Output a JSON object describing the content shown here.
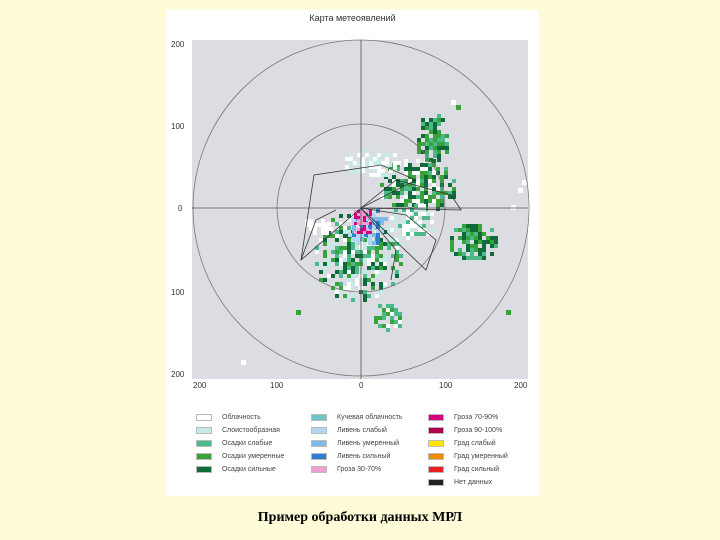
{
  "map": {
    "title": "Карта метеоявлений",
    "y_ticks": [
      "200",
      "100",
      "0",
      "100",
      "200"
    ],
    "x_ticks": [
      "200",
      "100",
      "0",
      "100",
      "200"
    ],
    "background_color": "#dcdde3",
    "ring_color": "#777777"
  },
  "legend": {
    "items": [
      {
        "label": "Облачность",
        "color": "#ffffff",
        "column": 1
      },
      {
        "label": "Слоистообразная",
        "color": "#c5ebe6",
        "column": 1
      },
      {
        "label": "Осадки слабые",
        "color": "#4cb98a",
        "column": 1
      },
      {
        "label": "Осадки умеренные",
        "color": "#3aa23a",
        "column": 1
      },
      {
        "label": "Осадки сильные",
        "color": "#0f6b3a",
        "column": 1
      },
      {
        "label": "Кучевая облачность",
        "color": "#6cc7c9",
        "column": 2
      },
      {
        "label": "Ливень слабый",
        "color": "#b2d7ee",
        "column": 2
      },
      {
        "label": "Ливень умеренный",
        "color": "#7fb9e8",
        "column": 2
      },
      {
        "label": "Ливень сильный",
        "color": "#2e7fd0",
        "column": 2
      },
      {
        "label": "Гроза 30-70%",
        "color": "#f0a0d0",
        "column": 2
      },
      {
        "label": "Гроза 70-90%",
        "color": "#d6007e",
        "column": 3
      },
      {
        "label": "Гроза 90-100%",
        "color": "#b0004e",
        "column": 3
      },
      {
        "label": "Град слабый",
        "color": "#ffe600",
        "column": 3
      },
      {
        "label": "Град умеренный",
        "color": "#f08a00",
        "column": 3
      },
      {
        "label": "Град сильный",
        "color": "#e82020",
        "column": 3
      },
      {
        "label": "Нет данных",
        "color": "#222222",
        "column": 3
      }
    ]
  },
  "caption": "Пример обработки данных МРЛ"
}
